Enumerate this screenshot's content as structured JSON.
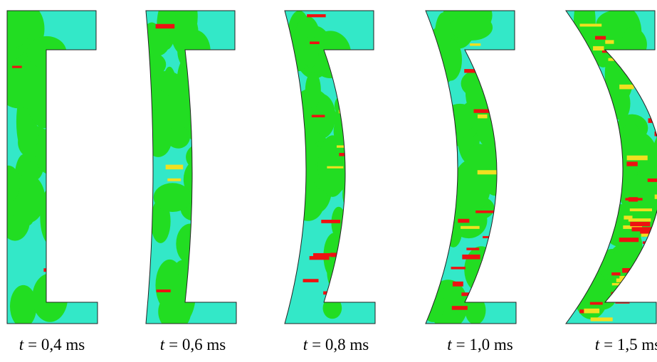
{
  "panels": [
    {
      "symbol": "t",
      "text": "= 0,4 ms"
    },
    {
      "symbol": "t",
      "text": "= 0,6 ms"
    },
    {
      "symbol": "t",
      "text": "= 0,8 ms"
    },
    {
      "symbol": "t",
      "text": "= 1,0 ms"
    },
    {
      "symbol": "t",
      "text": "= 1,5 ms"
    }
  ]
}
